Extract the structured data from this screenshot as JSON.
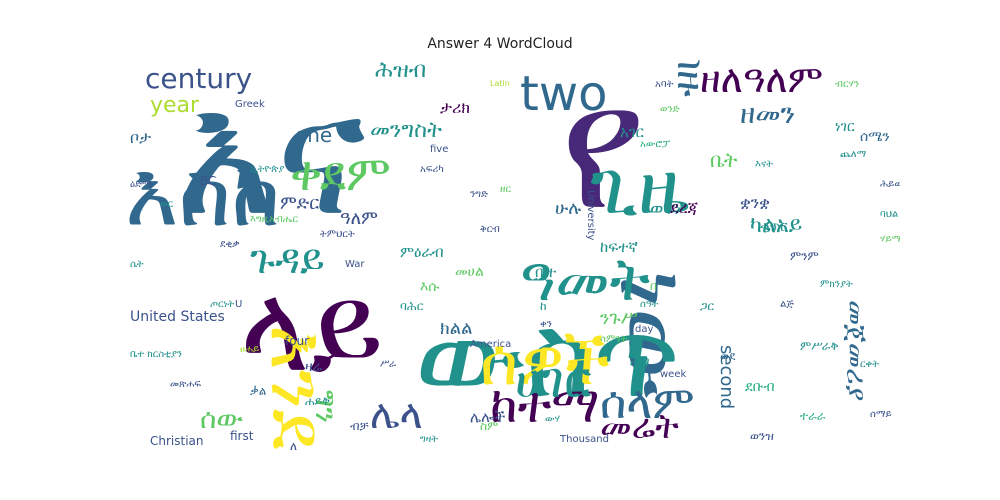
{
  "title": "Answer 4 WordCloud",
  "palette": [
    "#440154",
    "#3b528b",
    "#21918c",
    "#5ec962",
    "#fde725",
    "#2c728e",
    "#482878",
    "#27ad81",
    "#addc30",
    "#31688e"
  ],
  "words": [
    {
      "text": "እና",
      "color": "#31688e"
    },
    {
      "text": "የ",
      "color": "#482878"
    },
    {
      "text": "ነው",
      "color": "#31688e"
    },
    {
      "text": "ውስጥ",
      "color": "#21918c"
    },
    {
      "text": "ላይ",
      "color": "#440154"
    },
    {
      "text": "እስከ",
      "color": "#31688e"
    },
    {
      "text": "እንደ",
      "color": "#fde725"
    },
    {
      "text": "ሰዎች",
      "color": "#fde725"
    },
    {
      "text": "ጊዜ",
      "color": "#21918c"
    },
    {
      "text": "ዓመት",
      "color": "#21918c"
    },
    {
      "text": "ከተማ",
      "color": "#440154"
    },
    {
      "text": "ቀደም",
      "color": "#5ec962"
    },
    {
      "text": "ሰላም",
      "color": "#31688e"
    },
    {
      "text": "ሀገር",
      "color": "#21918c"
    },
    {
      "text": "two",
      "color": "#31688e"
    },
    {
      "text": "ዘለዓለም",
      "color": "#440154"
    },
    {
      "text": "ብዙ",
      "color": "#31688e"
    },
    {
      "text": "century",
      "color": "#3b528b"
    },
    {
      "text": "year",
      "color": "#addc30"
    },
    {
      "text": "one",
      "color": "#31688e"
    },
    {
      "text": "ቦታ",
      "color": "#31688e"
    },
    {
      "text": "ጉዳይ",
      "color": "#21918c"
    },
    {
      "text": "መሬት",
      "color": "#440154"
    },
    {
      "text": "ሌላ",
      "color": "#3b528b"
    },
    {
      "text": "ግን",
      "color": "#5ec962"
    },
    {
      "text": "second",
      "color": "#31688e"
    },
    {
      "text": "United States",
      "color": "#3b528b"
    },
    {
      "text": "Christian",
      "color": "#3b528b"
    },
    {
      "text": "first",
      "color": "#3b528b"
    },
    {
      "text": "four",
      "color": "#3b528b"
    },
    {
      "text": "Greek",
      "color": "#3b528b"
    },
    {
      "text": "BC",
      "color": "#3b528b"
    },
    {
      "text": "America",
      "color": "#3b528b"
    },
    {
      "text": "University",
      "color": "#3b528b"
    },
    {
      "text": "War",
      "color": "#3b528b"
    },
    {
      "text": "five",
      "color": "#3b528b"
    },
    {
      "text": "day",
      "color": "#3b528b"
    },
    {
      "text": "week",
      "color": "#3b528b"
    },
    {
      "text": "Thousand",
      "color": "#3b528b"
    },
    {
      "text": "Latin",
      "color": "#addc30"
    },
    {
      "text": "U",
      "color": "#3b528b"
    },
    {
      "text": "መጀመሪያ",
      "color": "#31688e"
    },
    {
      "text": "ሰው",
      "color": "#5ec962"
    },
    {
      "text": "ዘመን",
      "color": "#31688e"
    },
    {
      "text": "መንግስት",
      "color": "#21918c"
    },
    {
      "text": "ካልአይ",
      "color": "#21918c"
    },
    {
      "text": "ሕዝብ",
      "color": "#21918c"
    },
    {
      "text": "ቤት",
      "color": "#5ec962"
    },
    {
      "text": "ምድር",
      "color": "#3b528b"
    },
    {
      "text": "ወገን",
      "color": "#21918c"
    },
    {
      "text": "ዓለም",
      "color": "#3b528b"
    },
    {
      "text": "ሁሉ",
      "color": "#31688e"
    },
    {
      "text": "ቋንቋ",
      "color": "#3b528b"
    },
    {
      "text": "ከፍተኛ",
      "color": "#21918c"
    },
    {
      "text": "ንጉሥ",
      "color": "#5ec962"
    },
    {
      "text": "አገር",
      "color": "#21918c"
    },
    {
      "text": "ታሪክ",
      "color": "#440154"
    },
    {
      "text": "ክልል",
      "color": "#31688e"
    },
    {
      "text": "ምዕራብ",
      "color": "#21918c"
    },
    {
      "text": "ሌሎች",
      "color": "#3b528b"
    },
    {
      "text": "ቤተ",
      "color": "#21918c"
    },
    {
      "text": "መሀል",
      "color": "#5ec962"
    },
    {
      "text": "ደረጃ",
      "color": "#440154"
    },
    {
      "text": "ቁጥር",
      "color": "#21918c"
    },
    {
      "text": "ምንም",
      "color": "#3b528b"
    },
    {
      "text": "ነገር",
      "color": "#21918c"
    },
    {
      "text": "እሱ",
      "color": "#5ec962"
    },
    {
      "text": "ዛሬ",
      "color": "#3b528b"
    },
    {
      "text": "ሕግ",
      "color": "#21918c"
    },
    {
      "text": "ሰሜን",
      "color": "#31688e"
    },
    {
      "text": "ደቡብ",
      "color": "#27ad81"
    },
    {
      "text": "ምሥራቅ",
      "color": "#21918c"
    },
    {
      "text": "ባሕር",
      "color": "#21918c"
    },
    {
      "text": "ወንዝ",
      "color": "#3b528b"
    },
    {
      "text": "ተራራ",
      "color": "#27ad81"
    },
    {
      "text": "ሐይቅ",
      "color": "#21918c"
    },
    {
      "text": "ቃል",
      "color": "#31688e"
    },
    {
      "text": "ስም",
      "color": "#5ec962"
    },
    {
      "text": "ብቻ",
      "color": "#3b528b"
    },
    {
      "text": "ጋር",
      "color": "#21918c"
    },
    {
      "text": "ወደ",
      "color": "#31688e"
    },
    {
      "text": "ከ",
      "color": "#21918c"
    },
    {
      "text": "በ",
      "color": "#5ec962"
    },
    {
      "text": "ለ",
      "color": "#3b528b"
    },
    {
      "text": "ግዛት",
      "color": "#21918c"
    },
    {
      "text": "ሥራ",
      "color": "#3b528b"
    },
    {
      "text": "ውሃ",
      "color": "#21918c"
    },
    {
      "text": "እግዚአብሔር",
      "color": "#5ec962"
    },
    {
      "text": "ኢትዮጵያ",
      "color": "#21918c"
    },
    {
      "text": "አፍሪካ",
      "color": "#3b528b"
    },
    {
      "text": "አውሮፓ",
      "color": "#27ad81"
    },
    {
      "text": "ንግድ",
      "color": "#3b528b"
    },
    {
      "text": "ጦርነት",
      "color": "#21918c"
    },
    {
      "text": "መጽሐፍ",
      "color": "#3b528b"
    },
    {
      "text": "ቤተ ክርስቲያን",
      "color": "#21918c"
    },
    {
      "text": "ትምህርት",
      "color": "#3b528b"
    },
    {
      "text": "ሃይማኖት",
      "color": "#5ec962"
    },
    {
      "text": "ምክንያት",
      "color": "#21918c"
    },
    {
      "text": "ሕይወት",
      "color": "#3b528b"
    },
    {
      "text": "ባህል",
      "color": "#21918c"
    },
    {
      "text": "ዘር",
      "color": "#5ec962"
    },
    {
      "text": "ቅርብ",
      "color": "#3b528b"
    },
    {
      "text": "ርቀት",
      "color": "#21918c"
    },
    {
      "text": "ልጅ",
      "color": "#3b528b"
    },
    {
      "text": "እናት",
      "color": "#21918c"
    },
    {
      "text": "አባት",
      "color": "#3b528b"
    },
    {
      "text": "ወንድ",
      "color": "#5ec962"
    },
    {
      "text": "ሴት",
      "color": "#21918c"
    },
    {
      "text": "ዕድሜ",
      "color": "#3b528b"
    },
    {
      "text": "ወር",
      "color": "#21918c"
    },
    {
      "text": "ሳምንት",
      "color": "#5ec962"
    },
    {
      "text": "ቀን",
      "color": "#3b528b"
    },
    {
      "text": "ሰዓት",
      "color": "#21918c"
    },
    {
      "text": "ደቂቃ",
      "color": "#3b528b"
    },
    {
      "text": "ብርሃን",
      "color": "#5ec962"
    },
    {
      "text": "ጨለማ",
      "color": "#21918c"
    },
    {
      "text": "ሰማይ",
      "color": "#3b528b"
    },
    {
      "text": "ፀሐይ",
      "color": "#addc30"
    },
    {
      "text": "ጨረቃ",
      "color": "#21918c"
    },
    {
      "text": "ኮከብ",
      "color": "#3b528b"
    }
  ]
}
